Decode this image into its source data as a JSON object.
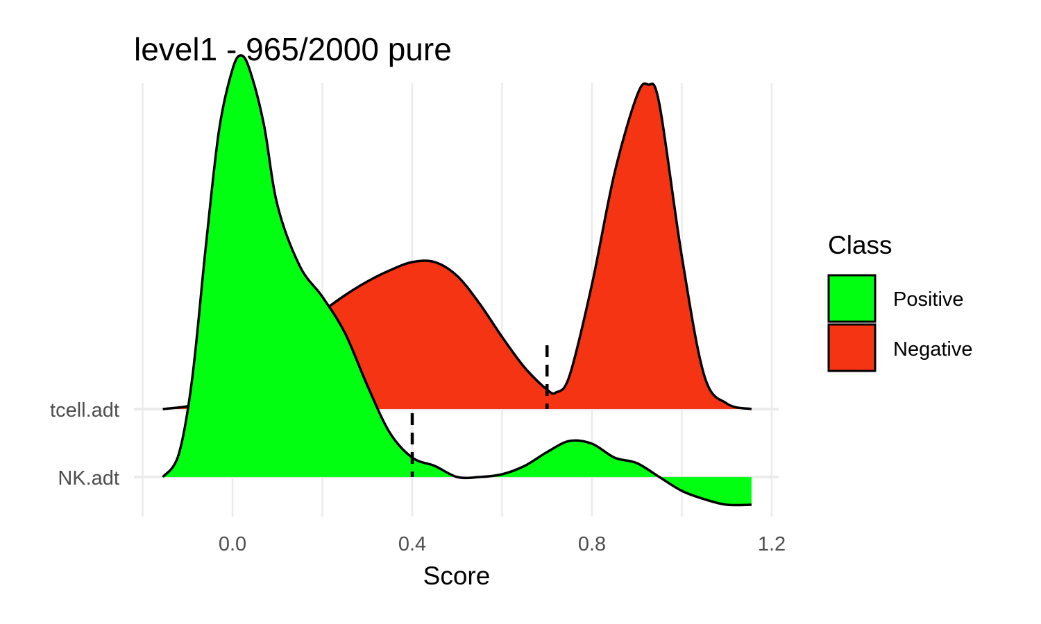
{
  "chart_data": {
    "type": "ridgeline",
    "title": "level1 - 965/2000 pure",
    "xlabel": "Score",
    "ylabel": "",
    "xlim": [
      -0.2,
      1.2
    ],
    "x_ticks": [
      0.0,
      0.4,
      0.8,
      1.2
    ],
    "x_tick_labels": [
      "0.0",
      "0.4",
      "0.8",
      "1.2"
    ],
    "grid": true,
    "legend": {
      "title": "Class",
      "placement": "right",
      "entries": [
        {
          "label": "Positive",
          "color": "#00ff11"
        },
        {
          "label": "Negative",
          "color": "#f43412"
        }
      ]
    },
    "categories": [
      "tcell.adt",
      "NK.adt"
    ],
    "ridges": [
      {
        "category": "tcell.adt",
        "class": "Negative",
        "color": "#f43412",
        "threshold": 0.7,
        "x": [
          -0.155,
          -0.1,
          -0.05,
          0.0,
          0.05,
          0.1,
          0.15,
          0.2,
          0.25,
          0.3,
          0.35,
          0.4,
          0.45,
          0.5,
          0.55,
          0.6,
          0.65,
          0.7,
          0.72,
          0.75,
          0.8,
          0.85,
          0.9,
          0.925,
          0.95,
          1.0,
          1.05,
          1.1,
          1.155
        ],
        "density": [
          0.0,
          0.01,
          0.03,
          0.06,
          0.11,
          0.19,
          0.27,
          0.35,
          0.41,
          0.46,
          0.5,
          0.53,
          0.53,
          0.48,
          0.38,
          0.26,
          0.15,
          0.07,
          0.06,
          0.12,
          0.45,
          0.85,
          1.13,
          1.17,
          1.1,
          0.55,
          0.12,
          0.02,
          0.0
        ]
      },
      {
        "category": "NK.adt",
        "class": "Positive",
        "color": "#00ff11",
        "threshold": 0.4,
        "x": [
          -0.155,
          -0.12,
          -0.09,
          -0.06,
          -0.03,
          0.0,
          0.02,
          0.04,
          0.07,
          0.1,
          0.15,
          0.2,
          0.25,
          0.3,
          0.35,
          0.4,
          0.45,
          0.5,
          0.55,
          0.6,
          0.65,
          0.7,
          0.75,
          0.8,
          0.85,
          0.9,
          0.95,
          1.0,
          1.05,
          1.1,
          1.155
        ],
        "density": [
          0.0,
          0.08,
          0.35,
          0.82,
          1.25,
          1.47,
          1.52,
          1.46,
          1.27,
          0.98,
          0.76,
          0.65,
          0.52,
          0.33,
          0.16,
          0.07,
          0.04,
          0.0,
          0.0,
          0.01,
          0.04,
          0.09,
          0.13,
          0.12,
          0.07,
          0.05,
          0.0,
          -0.05,
          -0.08,
          -0.1,
          -0.1
        ]
      }
    ]
  }
}
